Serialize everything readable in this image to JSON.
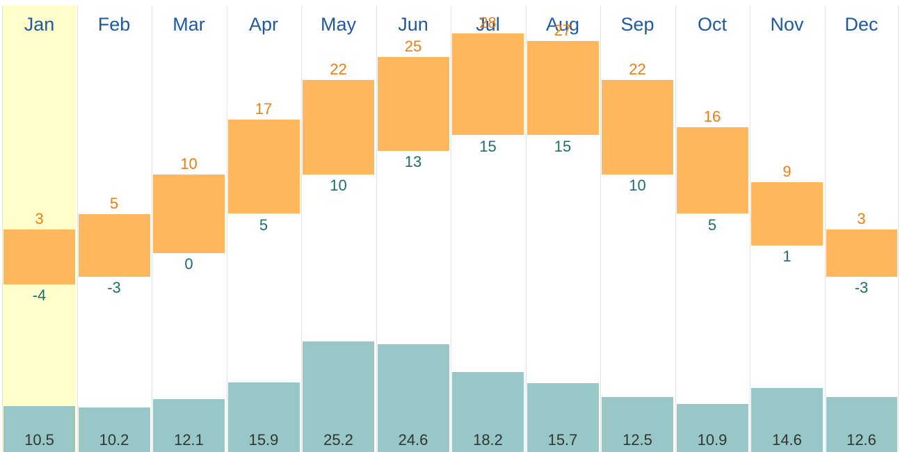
{
  "chart_data": {
    "type": "bar",
    "title": "",
    "selected_month": "Jan",
    "categories": [
      "Jan",
      "Feb",
      "Mar",
      "Apr",
      "May",
      "Jun",
      "Jul",
      "Aug",
      "Sep",
      "Oct",
      "Nov",
      "Dec"
    ],
    "series": [
      {
        "name": "high_temp",
        "values": [
          3,
          5,
          10,
          17,
          22,
          25,
          28,
          27,
          22,
          16,
          9,
          3
        ]
      },
      {
        "name": "low_temp",
        "values": [
          -4,
          -3,
          0,
          5,
          10,
          13,
          15,
          15,
          10,
          5,
          1,
          -3
        ]
      },
      {
        "name": "precipitation",
        "values": [
          "10.5",
          "10.2",
          "12.1",
          "15.9",
          "25.2",
          "24.6",
          "18.2",
          "15.7",
          "12.5",
          "10.9",
          "14.6",
          "12.6"
        ]
      }
    ],
    "colors": {
      "range_bar": "#ffb75e",
      "high_label": "#f07d12",
      "low_label": "#1d6e6e",
      "precip_bar": "#97c8c7",
      "month_label": "#1e5aa0",
      "selected_bg": "#ffffcc"
    }
  }
}
